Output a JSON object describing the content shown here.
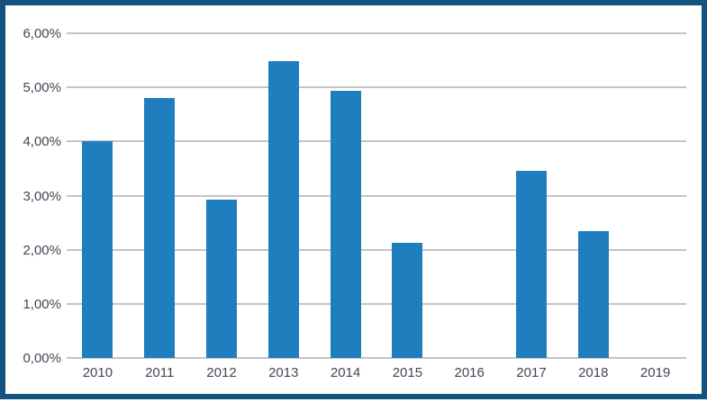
{
  "chart_data": {
    "type": "bar",
    "title": "",
    "xlabel": "",
    "ylabel": "",
    "categories": [
      "2010",
      "2011",
      "2012",
      "2013",
      "2014",
      "2015",
      "2016",
      "2017",
      "2018",
      "2019"
    ],
    "values": [
      4.0,
      4.8,
      2.93,
      5.48,
      4.93,
      2.12,
      0,
      3.45,
      2.35,
      0
    ],
    "value_unit": "%",
    "ylim": [
      0,
      6
    ],
    "ytick_step": 1,
    "ytick_labels": [
      "0,00%",
      "1,00%",
      "2,00%",
      "3,00%",
      "4,00%",
      "5,00%",
      "6,00%"
    ],
    "grid": true,
    "legend": false,
    "colors": {
      "bar": "#1F7EBE",
      "frame_border": "#14527F",
      "gridline": "#C4C4C4",
      "tick_label": "#3E4856",
      "background": "#FFFFFF"
    }
  }
}
